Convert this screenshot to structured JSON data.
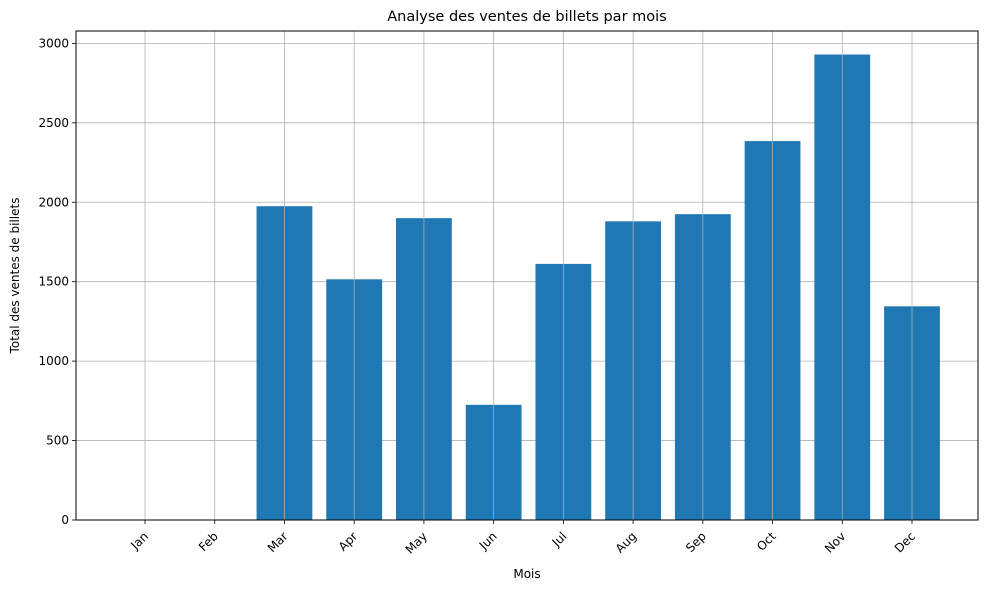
{
  "chart_data": {
    "type": "bar",
    "title": "Analyse des ventes de billets par mois",
    "xlabel": "Mois",
    "ylabel": "Total des ventes de billets",
    "categories": [
      "Jan",
      "Feb",
      "Mar",
      "Apr",
      "May",
      "Jun",
      "Jul",
      "Aug",
      "Sep",
      "Oct",
      "Nov",
      "Dec"
    ],
    "values": [
      0,
      0,
      1975,
      1515,
      1900,
      725,
      1612,
      1880,
      1925,
      2385,
      2930,
      1345
    ],
    "ylim": [
      0,
      3078
    ],
    "yticks": [
      0,
      500,
      1000,
      1500,
      2000,
      2500,
      3000
    ],
    "grid": true,
    "bar_color": "#1f77b4",
    "grid_color": "#b0b0b0",
    "xtick_rotation": 45
  }
}
